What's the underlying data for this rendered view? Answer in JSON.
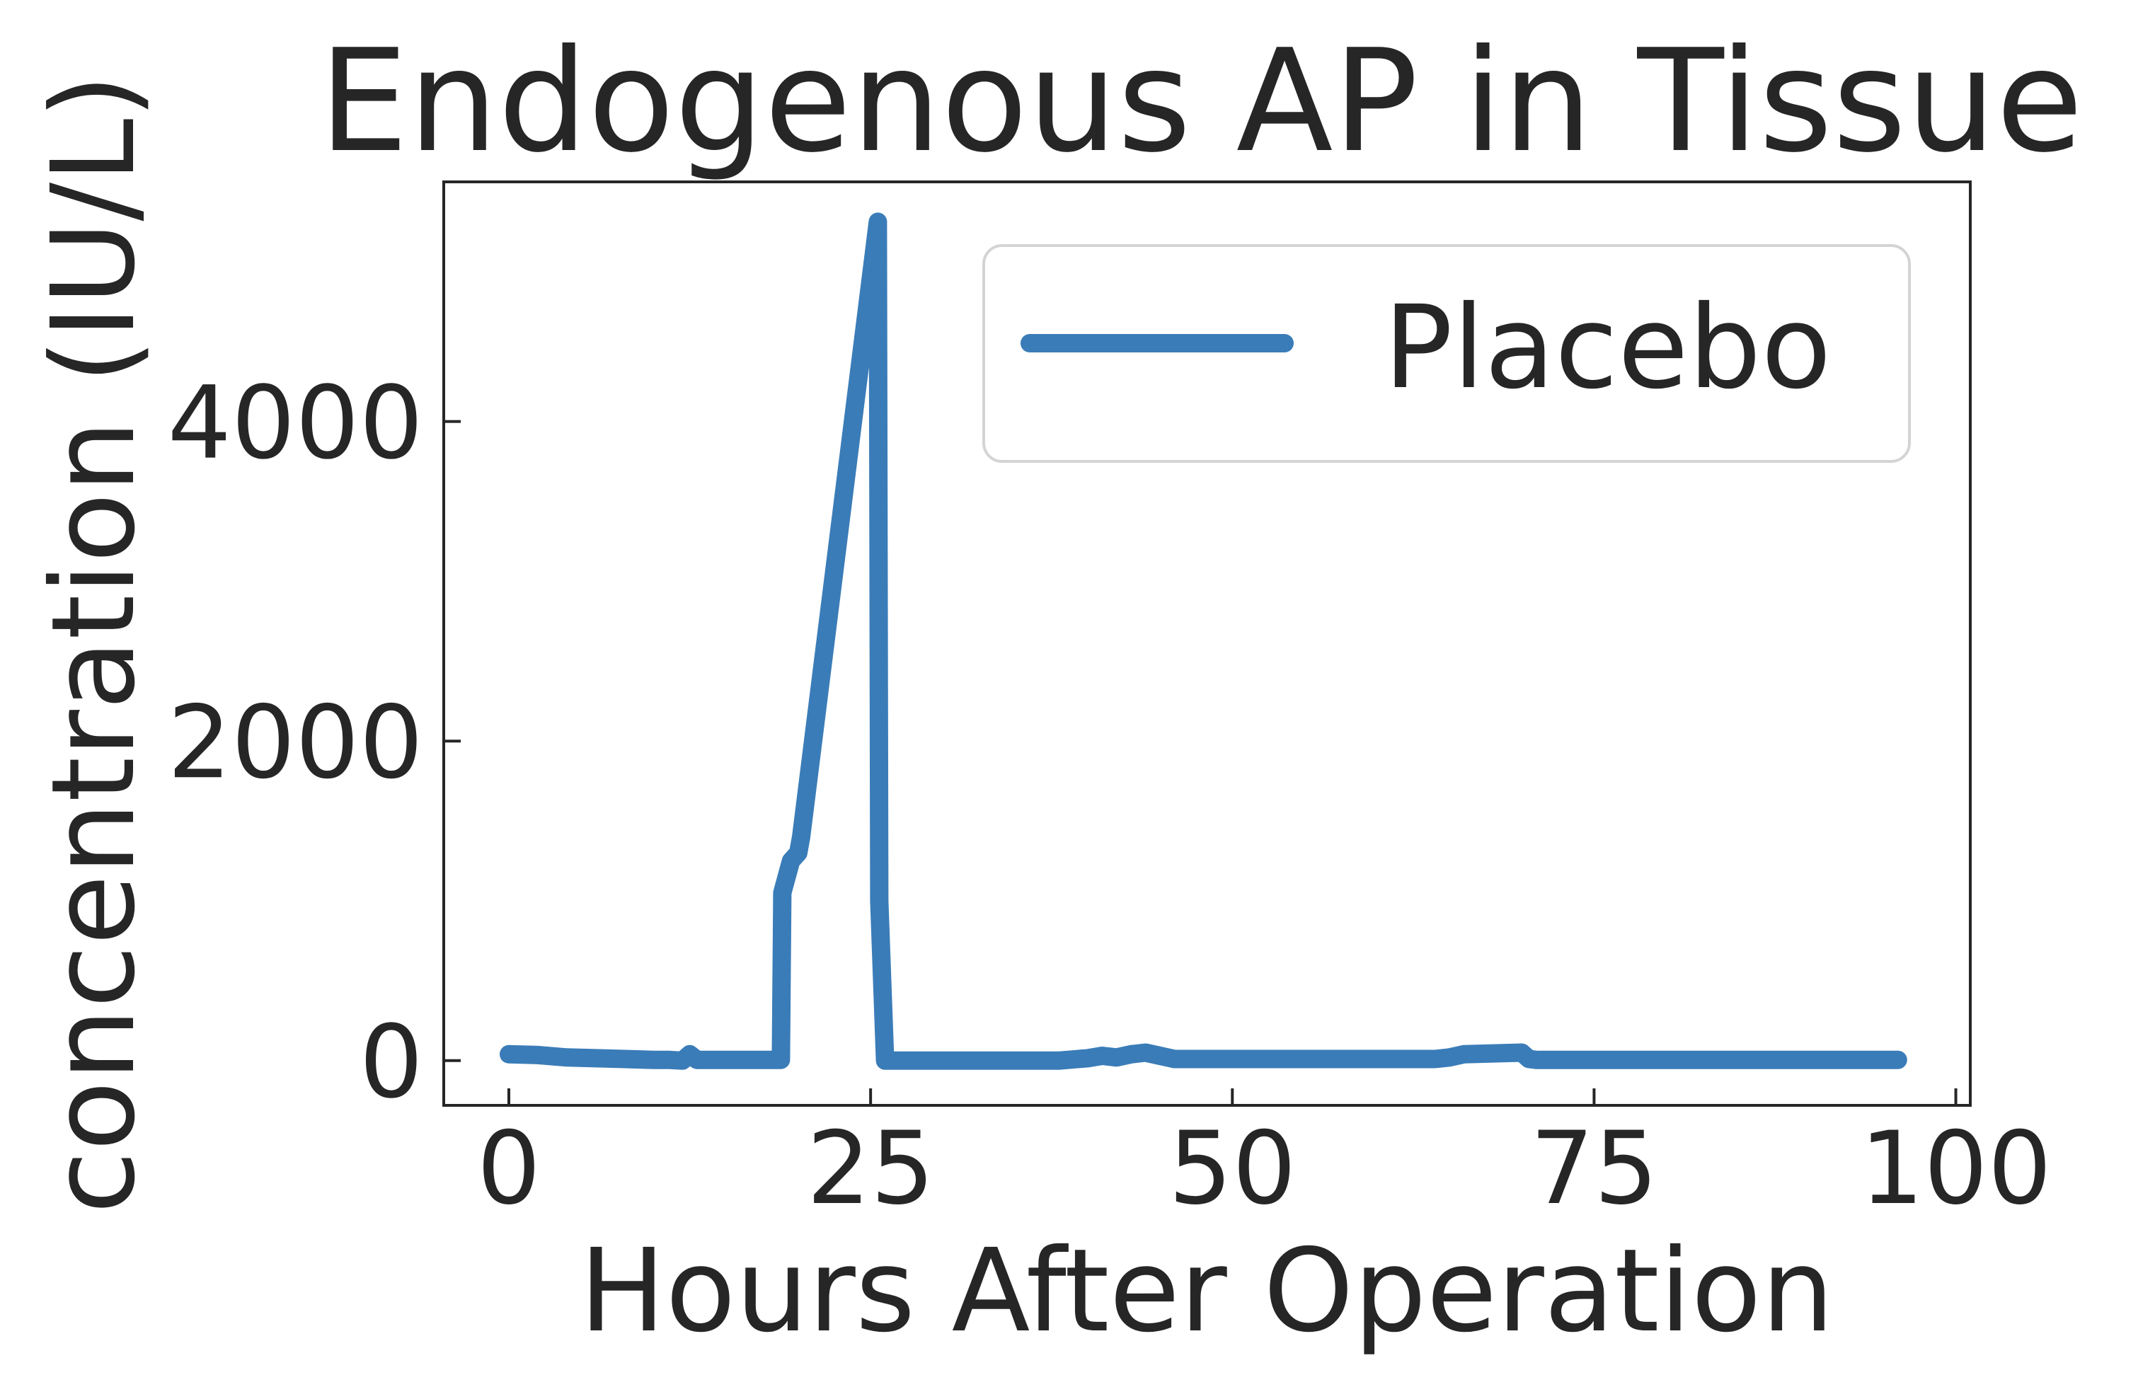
{
  "chart_data": {
    "type": "line",
    "title": "Endogenous AP in Tissue",
    "xlabel": "Hours After Operation",
    "ylabel": "concentration (IU/L)",
    "xlim": [
      -4.5,
      101
    ],
    "ylim": [
      -280,
      5500
    ],
    "xticks": [
      0,
      25,
      50,
      75,
      100
    ],
    "yticks": [
      0,
      2000,
      4000
    ],
    "legend_position": "top-right",
    "grid": false,
    "colors": {
      "series": "#3a7cb8",
      "axis": "#262626",
      "legend_border": "#d4d4d4"
    },
    "series": [
      {
        "name": "Placebo",
        "x": [
          0,
          2,
          4,
          6,
          8,
          10,
          11,
          12,
          12.5,
          13,
          15,
          17,
          18.8,
          18.9,
          19.5,
          20,
          20.2,
          25.5,
          25.6,
          26,
          35,
          38,
          40,
          41,
          42,
          43,
          44,
          45,
          46,
          50,
          60,
          64,
          65,
          66,
          68,
          70,
          70.5,
          71,
          80,
          90,
          96
        ],
        "y": [
          40,
          35,
          20,
          15,
          10,
          5,
          5,
          0,
          40,
          5,
          5,
          5,
          5,
          1050,
          1250,
          1300,
          1400,
          5250,
          1000,
          0,
          0,
          0,
          15,
          30,
          20,
          40,
          50,
          30,
          10,
          10,
          10,
          10,
          20,
          40,
          45,
          50,
          10,
          5,
          5,
          5,
          5
        ]
      }
    ]
  }
}
